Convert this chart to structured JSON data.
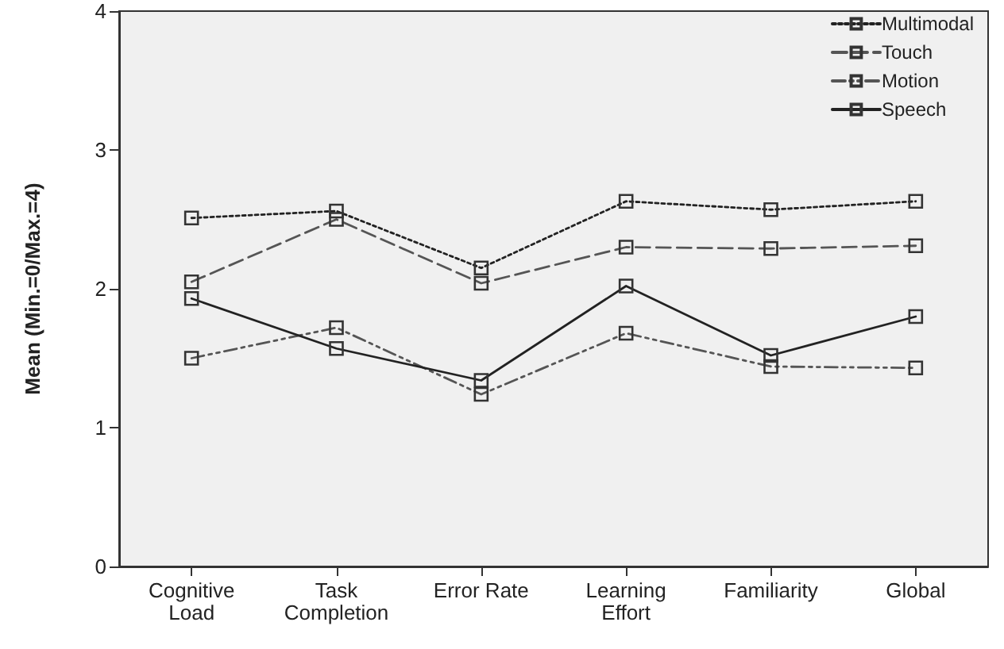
{
  "chart_data": {
    "type": "line",
    "ylabel": "Mean (Min.=0/Max.=4)",
    "categories": [
      "Cognitive\nLoad",
      "Task\nCompletion",
      "Error Rate",
      "Learning\nEffort",
      "Familiarity",
      "Global"
    ],
    "series": [
      {
        "name": "Multimodal",
        "color": "#222222",
        "line_style": "dotted",
        "values": [
          2.51,
          2.56,
          2.15,
          2.63,
          2.57,
          2.63
        ]
      },
      {
        "name": "Touch",
        "color": "#555555",
        "line_style": "dashed",
        "values": [
          2.05,
          2.5,
          2.04,
          2.3,
          2.29,
          2.31
        ]
      },
      {
        "name": "Motion",
        "color": "#555555",
        "line_style": "dashdotdot",
        "values": [
          1.5,
          1.72,
          1.24,
          1.68,
          1.44,
          1.43
        ]
      },
      {
        "name": "Speech",
        "color": "#222222",
        "line_style": "solid",
        "values": [
          1.93,
          1.57,
          1.34,
          2.02,
          1.52,
          1.8
        ]
      }
    ],
    "ylim": [
      0,
      4
    ],
    "yticks": [
      0,
      1,
      2,
      3,
      4
    ],
    "grid": false,
    "legend": "top right",
    "marker": "square"
  }
}
